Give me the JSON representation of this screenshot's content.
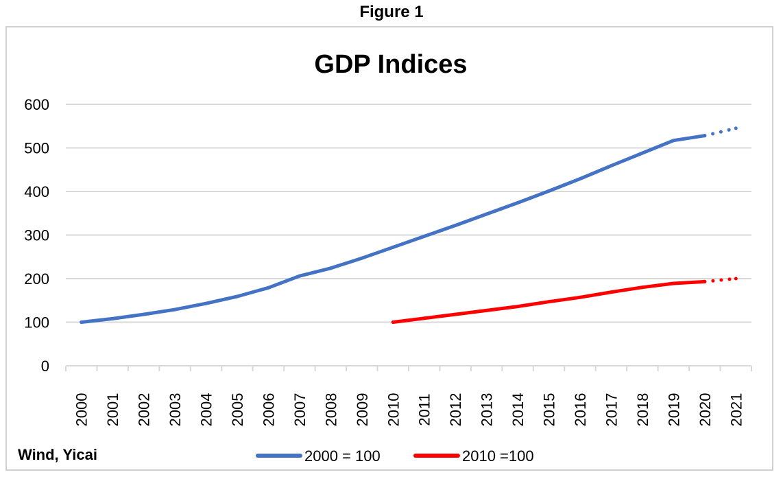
{
  "figure_caption": "Figure 1",
  "source_note": "Wind, Yicai",
  "colors": {
    "series_2000": "#4472c4",
    "series_2010": "#ff0000",
    "grid": "#d9d9d9"
  },
  "chart_data": {
    "type": "line",
    "title": "GDP Indices",
    "xlabel": "",
    "ylabel": "",
    "ylim": [
      0,
      600
    ],
    "yticks": [
      0,
      100,
      200,
      300,
      400,
      500,
      600
    ],
    "categories": [
      "2000",
      "2001",
      "2002",
      "2003",
      "2004",
      "2005",
      "2006",
      "2007",
      "2008",
      "2009",
      "2010",
      "2011",
      "2012",
      "2013",
      "2014",
      "2015",
      "2016",
      "2017",
      "2018",
      "2019",
      "2020",
      "2021"
    ],
    "grid": true,
    "legend_position": "bottom",
    "series": [
      {
        "name": "2000 = 100",
        "color": "#4472c4",
        "values": [
          100,
          108,
          118,
          129,
          143,
          159,
          179,
          206,
          224,
          247,
          272,
          297,
          322,
          348,
          374,
          401,
          429,
          459,
          488,
          517,
          528,
          545
        ],
        "forecast_from_index": 20
      },
      {
        "name": "2010 =100",
        "color": "#ff0000",
        "values": [
          null,
          null,
          null,
          null,
          null,
          null,
          null,
          null,
          null,
          null,
          100,
          109,
          118,
          127,
          136,
          147,
          157,
          169,
          180,
          189,
          193,
          200
        ],
        "forecast_from_index": 20
      }
    ]
  }
}
